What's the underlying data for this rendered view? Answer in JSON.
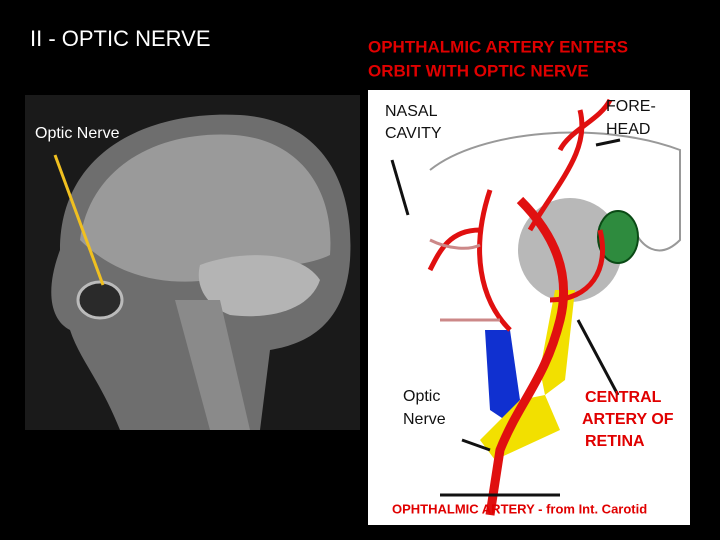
{
  "left": {
    "title": "II - OPTIC NERVE",
    "label": "Optic Nerve"
  },
  "right": {
    "title": [
      "OPHTHALMIC ARTERY ENTERS",
      "ORBIT WITH OPTIC NERVE"
    ],
    "labels": {
      "nasal_cavity": [
        "NASAL",
        "CAVITY"
      ],
      "forehead": [
        "FORE-",
        "HEAD"
      ],
      "optic_nerve": [
        "Optic",
        "Nerve"
      ],
      "central_artery": [
        "CENTRAL",
        "ARTERY OF",
        "RETINA"
      ]
    },
    "caption": "OPHTHALMIC ARTERY - from Int. Carotid"
  }
}
